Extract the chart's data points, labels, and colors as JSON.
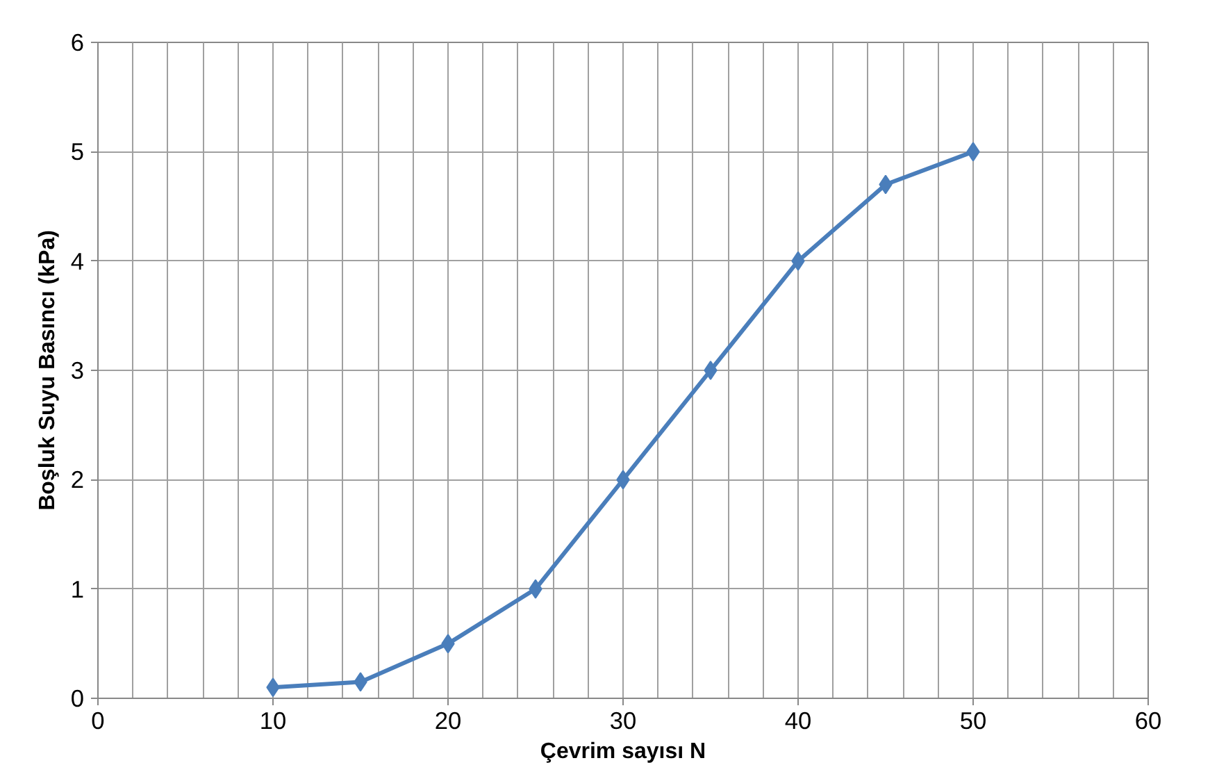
{
  "chart_data": {
    "type": "line",
    "xlabel": "Çevrim sayısı N",
    "ylabel": "Boşluk Suyu Basıncı (kPa)",
    "x": [
      10,
      15,
      20,
      25,
      30,
      35,
      40,
      45,
      50
    ],
    "series": [
      {
        "color": "#4a7ebb",
        "values": [
          0.1,
          0.15,
          0.5,
          1,
          2,
          3,
          4,
          4.7,
          5
        ]
      }
    ],
    "xlim": [
      0,
      60
    ],
    "ylim": [
      0,
      6
    ],
    "xticks": [
      0,
      {
        "value": 2,
        "label": null
      },
      {
        "value": 4,
        "label": null
      },
      {
        "value": 6,
        "label": null
      },
      {
        "value": 8,
        "label": null
      },
      10,
      {
        "value": 12,
        "label": null
      },
      {
        "value": 14,
        "label": null
      },
      {
        "value": 16,
        "label": null
      },
      {
        "value": 18,
        "label": null
      },
      20,
      {
        "value": 22,
        "label": null
      },
      {
        "value": 24,
        "label": null
      },
      {
        "value": 26,
        "label": null
      },
      {
        "value": 28,
        "label": null
      },
      30,
      {
        "value": 32,
        "label": null
      },
      {
        "value": 34,
        "label": null
      },
      {
        "value": 36,
        "label": null
      },
      {
        "value": 38,
        "label": null
      },
      40,
      {
        "value": 42,
        "label": null
      },
      {
        "value": 44,
        "label": null
      },
      {
        "value": 46,
        "label": null
      },
      {
        "value": 48,
        "label": null
      },
      50,
      {
        "value": 52,
        "label": null
      },
      {
        "value": 54,
        "label": null
      },
      {
        "value": 56,
        "label": null
      },
      {
        "value": 58,
        "label": null
      },
      60
    ],
    "yticks": [
      0,
      1,
      2,
      3,
      4,
      5,
      6
    ],
    "grid": true,
    "marker": "diamond",
    "line_style": "solid"
  }
}
